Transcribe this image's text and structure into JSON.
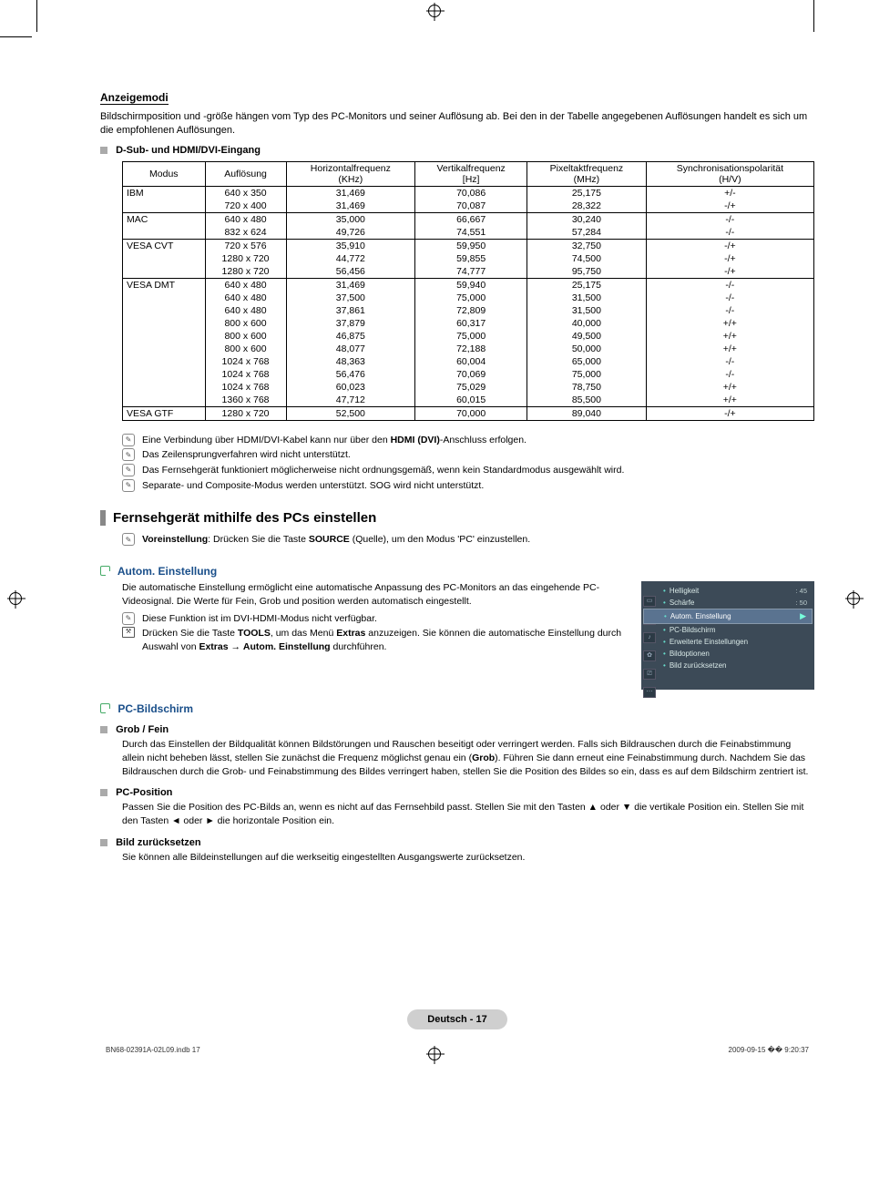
{
  "heading": "Anzeigemodi",
  "intro": "Bildschirmposition und -größe hängen vom Typ des PC-Monitors und seiner Auflösung ab. Bei den in der Tabelle angegebenen Auflösungen handelt es sich um die empfohlenen Auflösungen.",
  "table_title": "D-Sub- und HDMI/DVI-Eingang",
  "columns": {
    "mode": "Modus",
    "res": "Auflösung",
    "hfreq": "Horizontalfrequenz",
    "hfreq_unit": "(KHz)",
    "vfreq": "Vertikalfrequenz",
    "vfreq_unit": "[Hz]",
    "pclk": "Pixeltaktfrequenz",
    "pclk_unit": "(MHz)",
    "sync": "Synchronisationspolarität",
    "sync_unit": "(H/V)"
  },
  "groups": [
    {
      "mode": "IBM",
      "rows": [
        {
          "res": "640 x 350",
          "h": "31,469",
          "v": "70,086",
          "p": "25,175",
          "s": "+/-"
        },
        {
          "res": "720 x 400",
          "h": "31,469",
          "v": "70,087",
          "p": "28,322",
          "s": "-/+"
        }
      ]
    },
    {
      "mode": "MAC",
      "rows": [
        {
          "res": "640 x 480",
          "h": "35,000",
          "v": "66,667",
          "p": "30,240",
          "s": "-/-"
        },
        {
          "res": "832 x 624",
          "h": "49,726",
          "v": "74,551",
          "p": "57,284",
          "s": "-/-"
        }
      ]
    },
    {
      "mode": "VESA CVT",
      "rows": [
        {
          "res": "720 x 576",
          "h": "35,910",
          "v": "59,950",
          "p": "32,750",
          "s": "-/+"
        },
        {
          "res": "1280 x 720",
          "h": "44,772",
          "v": "59,855",
          "p": "74,500",
          "s": "-/+"
        },
        {
          "res": "1280 x 720",
          "h": "56,456",
          "v": "74,777",
          "p": "95,750",
          "s": "-/+"
        }
      ]
    },
    {
      "mode": "VESA DMT",
      "rows": [
        {
          "res": "640 x 480",
          "h": "31,469",
          "v": "59,940",
          "p": "25,175",
          "s": "-/-"
        },
        {
          "res": "640 x 480",
          "h": "37,500",
          "v": "75,000",
          "p": "31,500",
          "s": "-/-"
        },
        {
          "res": "640 x 480",
          "h": "37,861",
          "v": "72,809",
          "p": "31,500",
          "s": "-/-"
        },
        {
          "res": "800 x 600",
          "h": "37,879",
          "v": "60,317",
          "p": "40,000",
          "s": "+/+"
        },
        {
          "res": "800 x 600",
          "h": "46,875",
          "v": "75,000",
          "p": "49,500",
          "s": "+/+"
        },
        {
          "res": "800 x 600",
          "h": "48,077",
          "v": "72,188",
          "p": "50,000",
          "s": "+/+"
        },
        {
          "res": "1024 x 768",
          "h": "48,363",
          "v": "60,004",
          "p": "65,000",
          "s": "-/-"
        },
        {
          "res": "1024 x 768",
          "h": "56,476",
          "v": "70,069",
          "p": "75,000",
          "s": "-/-"
        },
        {
          "res": "1024 x 768",
          "h": "60,023",
          "v": "75,029",
          "p": "78,750",
          "s": "+/+"
        },
        {
          "res": "1360 x 768",
          "h": "47,712",
          "v": "60,015",
          "p": "85,500",
          "s": "+/+"
        }
      ]
    },
    {
      "mode": "VESA GTF",
      "rows": [
        {
          "res": "1280 x 720",
          "h": "52,500",
          "v": "70,000",
          "p": "89,040",
          "s": "-/+"
        }
      ]
    }
  ],
  "notes": [
    {
      "pre": "Eine Verbindung über HDMI/DVI-Kabel kann nur über den ",
      "bold": "HDMI (DVI)",
      "post": "-Anschluss erfolgen."
    },
    {
      "pre": "Das Zeilensprungverfahren wird nicht unterstützt.",
      "bold": "",
      "post": ""
    },
    {
      "pre": "Das Fernsehgerät funktioniert möglicherweise nicht ordnungsgemäß, wenn kein Standardmodus ausgewählt wird.",
      "bold": "",
      "post": ""
    },
    {
      "pre": "Separate- und Composite-Modus werden unterstützt. SOG wird nicht unterstützt.",
      "bold": "",
      "post": ""
    }
  ],
  "section2": "Fernsehgerät mithilfe des PCs einstellen",
  "preset_pre": "",
  "preset_bold1": "Voreinstellung",
  "preset_mid": ": Drücken Sie die Taste ",
  "preset_bold2": "SOURCE",
  "preset_post": " (Quelle), um den Modus 'PC' einzustellen.",
  "autom_title": "Autom. Einstellung",
  "autom_body": "Die automatische Einstellung ermöglicht eine automatische Anpassung des PC-Monitors an das eingehende PC-Videosignal. Die Werte für Fein, Grob und position werden automatisch eingestellt.",
  "autom_note1": "Diese Funktion ist im DVI-HDMI-Modus nicht verfügbar.",
  "autom_tool_pre": "Drücken Sie die Taste ",
  "autom_tool_b1": "TOOLS",
  "autom_tool_mid": ", um das Menü ",
  "autom_tool_b2": "Extras",
  "autom_tool_mid2": " anzuzeigen. Sie können die automatische Einstellung durch Auswahl von ",
  "autom_tool_b3": "Extras",
  "autom_tool_arrow": " → ",
  "autom_tool_b4": "Autom. Einstellung",
  "autom_tool_post": " durchführen.",
  "osd": {
    "rows": [
      {
        "label": "Helligkeit",
        "val": ": 45"
      },
      {
        "label": "Schärfe",
        "val": ": 50"
      },
      {
        "label": "Autom. Einstellung",
        "val": "",
        "selected": true,
        "arrow": "▶"
      },
      {
        "label": "PC-Bildschirm",
        "val": ""
      },
      {
        "label": "Erweiterte Einstellungen",
        "val": ""
      },
      {
        "label": "Bildoptionen",
        "val": ""
      },
      {
        "label": "Bild zurücksetzen",
        "val": ""
      }
    ],
    "colors": {
      "bg": "#3c4a57",
      "sel": "#5a7390",
      "text": "#d9e9e7",
      "arrow": "#7fe8d8"
    }
  },
  "pc_title": "PC-Bildschirm",
  "pc_sub1": "Grob / Fein",
  "pc_body1": "Durch das Einstellen der Bildqualität können Bildstörungen und Rauschen beseitigt oder verringert werden. Falls sich Bildrauschen durch die Feinabstimmung allein nicht beheben lässt, stellen Sie zunächst die Frequenz möglichst genau ein (",
  "pc_body1_b": "Grob",
  "pc_body1_post": "). Führen Sie dann erneut eine Feinabstimmung durch. Nachdem Sie das Bildrauschen durch die Grob- und Feinabstimmung des Bildes verringert haben, stellen Sie die Position des Bildes so ein, dass es auf dem Bildschirm zentriert ist.",
  "pc_sub2": "PC-Position",
  "pc_body2": "Passen Sie die Position des PC-Bilds an, wenn es nicht auf das Fernsehbild passt. Stellen Sie mit den Tasten ▲ oder ▼ die vertikale Position ein. Stellen Sie mit den Tasten ◄ oder ► die horizontale Position ein.",
  "pc_sub3": "Bild zurücksetzen",
  "pc_body3": "Sie können alle Bildeinstellungen auf die werkseitig eingestellten Ausgangswerte zurücksetzen.",
  "footer": "Deutsch - 17",
  "tiny_left": "BN68-02391A-02L09.indb   17",
  "tiny_right": "2009-09-15   �� 9:20:37"
}
